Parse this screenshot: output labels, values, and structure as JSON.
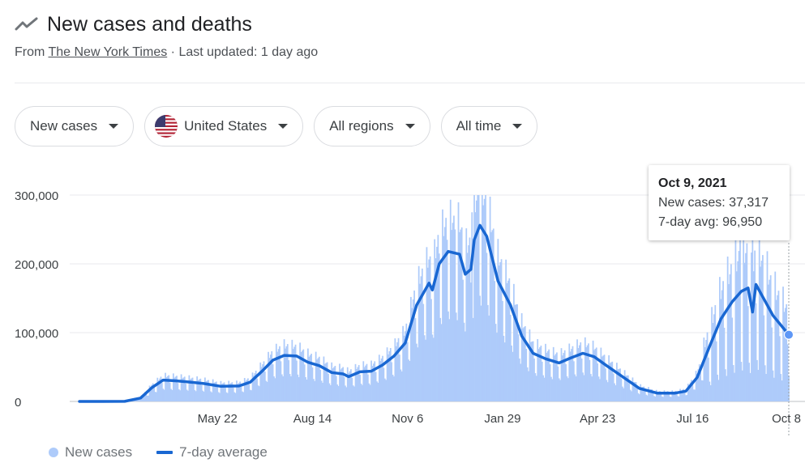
{
  "header": {
    "title": "New cases and deaths",
    "icon": "trending-line-icon",
    "source_prefix": "From",
    "source_name": "The New York Times",
    "source_suffix": " · Last updated: 1 day ago"
  },
  "filters": {
    "metric": "New cases",
    "country": "United States",
    "country_icon": "us-flag-icon",
    "region": "All regions",
    "time": "All time"
  },
  "tooltip": {
    "date": "Oct 9, 2021",
    "new_cases": "New cases: 37,317",
    "avg": "7-day avg: 96,950"
  },
  "legend": {
    "bars": "New cases",
    "line": "7-day average"
  },
  "colors": {
    "bars": "#aecbfa",
    "line": "#1967d2",
    "point": "#5e97f6"
  },
  "chart_data": {
    "type": "bar",
    "title": "New cases and deaths",
    "x_range": [
      "2020-01-21",
      "2021-10-09"
    ],
    "ylim": [
      0,
      300000
    ],
    "y_ticks": [
      0,
      100000,
      200000,
      300000
    ],
    "y_tick_labels": [
      "0",
      "100,000",
      "200,000",
      "300,000"
    ],
    "x_ticks": [
      "2020-05-22",
      "2020-08-14",
      "2020-11-06",
      "2021-01-29",
      "2021-04-23",
      "2021-07-16",
      "2021-10-08"
    ],
    "x_tick_labels": [
      "May 22",
      "Aug 14",
      "Nov 6",
      "Jan 29",
      "Apr 23",
      "Jul 16",
      "Oct 8"
    ],
    "grid": true,
    "legend_position": "bottom-left",
    "series": [
      {
        "name": "7-day average",
        "kind": "line",
        "points": [
          [
            "2020-01-21",
            0
          ],
          [
            "2020-03-01",
            100
          ],
          [
            "2020-03-15",
            5000
          ],
          [
            "2020-03-25",
            20000
          ],
          [
            "2020-04-04",
            31000
          ],
          [
            "2020-04-15",
            30000
          ],
          [
            "2020-04-25",
            28500
          ],
          [
            "2020-05-10",
            26000
          ],
          [
            "2020-05-25",
            22000
          ],
          [
            "2020-06-10",
            22500
          ],
          [
            "2020-06-20",
            28000
          ],
          [
            "2020-07-01",
            45000
          ],
          [
            "2020-07-10",
            60000
          ],
          [
            "2020-07-20",
            67000
          ],
          [
            "2020-07-31",
            66000
          ],
          [
            "2020-08-10",
            57000
          ],
          [
            "2020-08-20",
            52000
          ],
          [
            "2020-08-31",
            42000
          ],
          [
            "2020-09-10",
            40000
          ],
          [
            "2020-09-15",
            36000
          ],
          [
            "2020-09-25",
            43000
          ],
          [
            "2020-10-05",
            44000
          ],
          [
            "2020-10-15",
            53000
          ],
          [
            "2020-10-25",
            66000
          ],
          [
            "2020-11-04",
            85000
          ],
          [
            "2020-11-14",
            140000
          ],
          [
            "2020-11-25",
            172000
          ],
          [
            "2020-11-28",
            162000
          ],
          [
            "2020-12-04",
            200000
          ],
          [
            "2020-12-12",
            218000
          ],
          [
            "2020-12-22",
            214000
          ],
          [
            "2020-12-27",
            185000
          ],
          [
            "2021-01-01",
            192000
          ],
          [
            "2021-01-04",
            235000
          ],
          [
            "2021-01-09",
            256000
          ],
          [
            "2021-01-15",
            240000
          ],
          [
            "2021-01-25",
            175000
          ],
          [
            "2021-02-05",
            140000
          ],
          [
            "2021-02-15",
            95000
          ],
          [
            "2021-02-25",
            70000
          ],
          [
            "2021-03-08",
            62000
          ],
          [
            "2021-03-20",
            56000
          ],
          [
            "2021-03-30",
            63000
          ],
          [
            "2021-04-10",
            70000
          ],
          [
            "2021-04-20",
            65000
          ],
          [
            "2021-05-01",
            52000
          ],
          [
            "2021-05-15",
            36000
          ],
          [
            "2021-05-30",
            19000
          ],
          [
            "2021-06-15",
            12000
          ],
          [
            "2021-06-30",
            12000
          ],
          [
            "2021-07-10",
            15000
          ],
          [
            "2021-07-20",
            35000
          ],
          [
            "2021-07-31",
            80000
          ],
          [
            "2021-08-10",
            120000
          ],
          [
            "2021-08-20",
            145000
          ],
          [
            "2021-08-28",
            160000
          ],
          [
            "2021-09-03",
            165000
          ],
          [
            "2021-09-07",
            130000
          ],
          [
            "2021-09-10",
            170000
          ],
          [
            "2021-09-15",
            155000
          ],
          [
            "2021-09-25",
            125000
          ],
          [
            "2021-10-09",
            96950
          ]
        ]
      },
      {
        "name": "New cases",
        "kind": "bar",
        "notable": [
          [
            "2020-12-04",
            215000
          ],
          [
            "2020-12-11",
            235000
          ],
          [
            "2020-12-18",
            250000
          ],
          [
            "2021-01-02",
            275000
          ],
          [
            "2021-01-08",
            300000
          ],
          [
            "2021-09-07",
            260000
          ],
          [
            "2021-08-27",
            250000
          ],
          [
            "2021-10-09",
            37317
          ]
        ]
      }
    ]
  }
}
